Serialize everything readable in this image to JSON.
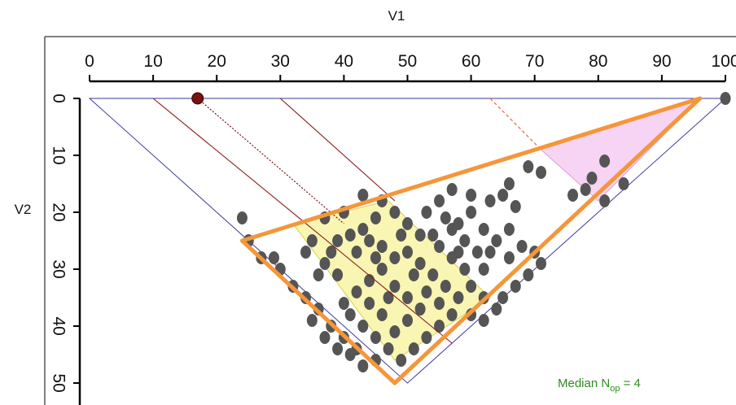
{
  "chart_data": {
    "type": "scatter",
    "xlabel": "V1",
    "ylabel": "V2",
    "xlim": [
      0,
      100
    ],
    "ylim": [
      0,
      50
    ],
    "x_ticks": [
      0,
      10,
      20,
      30,
      40,
      50,
      60,
      70,
      80,
      90,
      100
    ],
    "y_ticks": [
      0,
      10,
      20,
      30,
      40,
      50
    ],
    "y_tick_orientation": "rotated-90",
    "annotation": {
      "text": "Median N",
      "subscript": "op",
      "suffix": " = 4",
      "color": "#2e8b1f",
      "placement": "bottom-right"
    },
    "frame": [
      [
        0,
        0
      ],
      [
        100,
        0
      ],
      [
        50,
        50
      ]
    ],
    "marked_point": {
      "x": 17,
      "y": 0,
      "color": "#7a1010"
    },
    "big_triangle": {
      "vertices": [
        [
          24,
          25
        ],
        [
          96,
          0
        ],
        [
          48,
          50
        ]
      ],
      "color": "#f4963a"
    },
    "yellow_band": {
      "corners": [
        [
          32,
          22
        ],
        [
          47,
          18
        ],
        [
          63,
          35
        ],
        [
          48,
          46
        ]
      ],
      "color": "#f7f39a"
    },
    "pink_region": {
      "vertices": [
        [
          71,
          9
        ],
        [
          96,
          0
        ],
        [
          80,
          18
        ]
      ],
      "color": "#f4c6ef"
    },
    "reference_lines": [
      {
        "from": [
          10,
          0
        ],
        "to": [
          57,
          43
        ],
        "color": "#8b1a1a",
        "style": "solid"
      },
      {
        "from": [
          17,
          0
        ],
        "to": [
          40,
          22
        ],
        "color": "#6b0000",
        "style": "dotted"
      },
      {
        "from": [
          30,
          0
        ],
        "to": [
          48,
          18
        ],
        "color": "#8b1a1a",
        "style": "solid"
      },
      {
        "from": [
          63,
          0
        ],
        "to": [
          71,
          9
        ],
        "color": "#e06030",
        "style": "dashed"
      }
    ],
    "point_color": "#555555",
    "points": [
      {
        "x": 100,
        "y": 0
      },
      {
        "x": 81,
        "y": 11
      },
      {
        "x": 79,
        "y": 14
      },
      {
        "x": 78,
        "y": 16
      },
      {
        "x": 76,
        "y": 17
      },
      {
        "x": 81,
        "y": 18
      },
      {
        "x": 84,
        "y": 15
      },
      {
        "x": 69,
        "y": 12
      },
      {
        "x": 71,
        "y": 13
      },
      {
        "x": 66,
        "y": 15
      },
      {
        "x": 65,
        "y": 17
      },
      {
        "x": 67,
        "y": 19
      },
      {
        "x": 63,
        "y": 18
      },
      {
        "x": 60,
        "y": 17
      },
      {
        "x": 57,
        "y": 16
      },
      {
        "x": 55,
        "y": 18
      },
      {
        "x": 53,
        "y": 20
      },
      {
        "x": 56,
        "y": 21
      },
      {
        "x": 60,
        "y": 20
      },
      {
        "x": 58,
        "y": 22
      },
      {
        "x": 62,
        "y": 23
      },
      {
        "x": 64,
        "y": 25
      },
      {
        "x": 66,
        "y": 23
      },
      {
        "x": 68,
        "y": 26
      },
      {
        "x": 66,
        "y": 28
      },
      {
        "x": 70,
        "y": 27
      },
      {
        "x": 71,
        "y": 29
      },
      {
        "x": 69,
        "y": 31
      },
      {
        "x": 67,
        "y": 33
      },
      {
        "x": 65,
        "y": 35
      },
      {
        "x": 64,
        "y": 37
      },
      {
        "x": 62,
        "y": 35
      },
      {
        "x": 60,
        "y": 33
      },
      {
        "x": 62,
        "y": 30
      },
      {
        "x": 59,
        "y": 30
      },
      {
        "x": 57,
        "y": 28
      },
      {
        "x": 55,
        "y": 26
      },
      {
        "x": 52,
        "y": 24
      },
      {
        "x": 50,
        "y": 22
      },
      {
        "x": 48,
        "y": 20
      },
      {
        "x": 46,
        "y": 18
      },
      {
        "x": 43,
        "y": 17
      },
      {
        "x": 45,
        "y": 21
      },
      {
        "x": 43,
        "y": 23
      },
      {
        "x": 41,
        "y": 24
      },
      {
        "x": 39,
        "y": 25
      },
      {
        "x": 38,
        "y": 27
      },
      {
        "x": 37,
        "y": 29
      },
      {
        "x": 36,
        "y": 31
      },
      {
        "x": 39,
        "y": 31
      },
      {
        "x": 42,
        "y": 27
      },
      {
        "x": 44,
        "y": 25
      },
      {
        "x": 46,
        "y": 26
      },
      {
        "x": 48,
        "y": 28
      },
      {
        "x": 50,
        "y": 27
      },
      {
        "x": 52,
        "y": 29
      },
      {
        "x": 54,
        "y": 31
      },
      {
        "x": 56,
        "y": 33
      },
      {
        "x": 58,
        "y": 35
      },
      {
        "x": 57,
        "y": 38
      },
      {
        "x": 55,
        "y": 40
      },
      {
        "x": 53,
        "y": 42
      },
      {
        "x": 51,
        "y": 44
      },
      {
        "x": 49,
        "y": 46
      },
      {
        "x": 47,
        "y": 44
      },
      {
        "x": 45,
        "y": 42
      },
      {
        "x": 43,
        "y": 40
      },
      {
        "x": 41,
        "y": 38
      },
      {
        "x": 40,
        "y": 36
      },
      {
        "x": 42,
        "y": 34
      },
      {
        "x": 44,
        "y": 32
      },
      {
        "x": 46,
        "y": 30
      },
      {
        "x": 48,
        "y": 33
      },
      {
        "x": 50,
        "y": 35
      },
      {
        "x": 52,
        "y": 37
      },
      {
        "x": 50,
        "y": 39
      },
      {
        "x": 48,
        "y": 41
      },
      {
        "x": 46,
        "y": 38
      },
      {
        "x": 44,
        "y": 36
      },
      {
        "x": 42,
        "y": 44
      },
      {
        "x": 40,
        "y": 42
      },
      {
        "x": 38,
        "y": 40
      },
      {
        "x": 36,
        "y": 37
      },
      {
        "x": 34,
        "y": 35
      },
      {
        "x": 32,
        "y": 33
      },
      {
        "x": 30,
        "y": 30
      },
      {
        "x": 29,
        "y": 28
      },
      {
        "x": 27,
        "y": 28
      },
      {
        "x": 25,
        "y": 25
      },
      {
        "x": 24,
        "y": 21
      },
      {
        "x": 35,
        "y": 25
      },
      {
        "x": 34,
        "y": 27
      },
      {
        "x": 37,
        "y": 21
      },
      {
        "x": 40,
        "y": 20
      },
      {
        "x": 45,
        "y": 46
      },
      {
        "x": 43,
        "y": 47
      },
      {
        "x": 41,
        "y": 45
      },
      {
        "x": 39,
        "y": 44
      },
      {
        "x": 59,
        "y": 25
      },
      {
        "x": 61,
        "y": 27
      },
      {
        "x": 63,
        "y": 27
      },
      {
        "x": 58,
        "y": 27
      },
      {
        "x": 54,
        "y": 24
      },
      {
        "x": 51,
        "y": 31
      },
      {
        "x": 47,
        "y": 35
      },
      {
        "x": 45,
        "y": 28
      },
      {
        "x": 53,
        "y": 34
      },
      {
        "x": 55,
        "y": 36
      },
      {
        "x": 60,
        "y": 38
      },
      {
        "x": 62,
        "y": 39
      },
      {
        "x": 35,
        "y": 39
      },
      {
        "x": 37,
        "y": 42
      },
      {
        "x": 49,
        "y": 24
      },
      {
        "x": 57,
        "y": 23
      }
    ]
  }
}
